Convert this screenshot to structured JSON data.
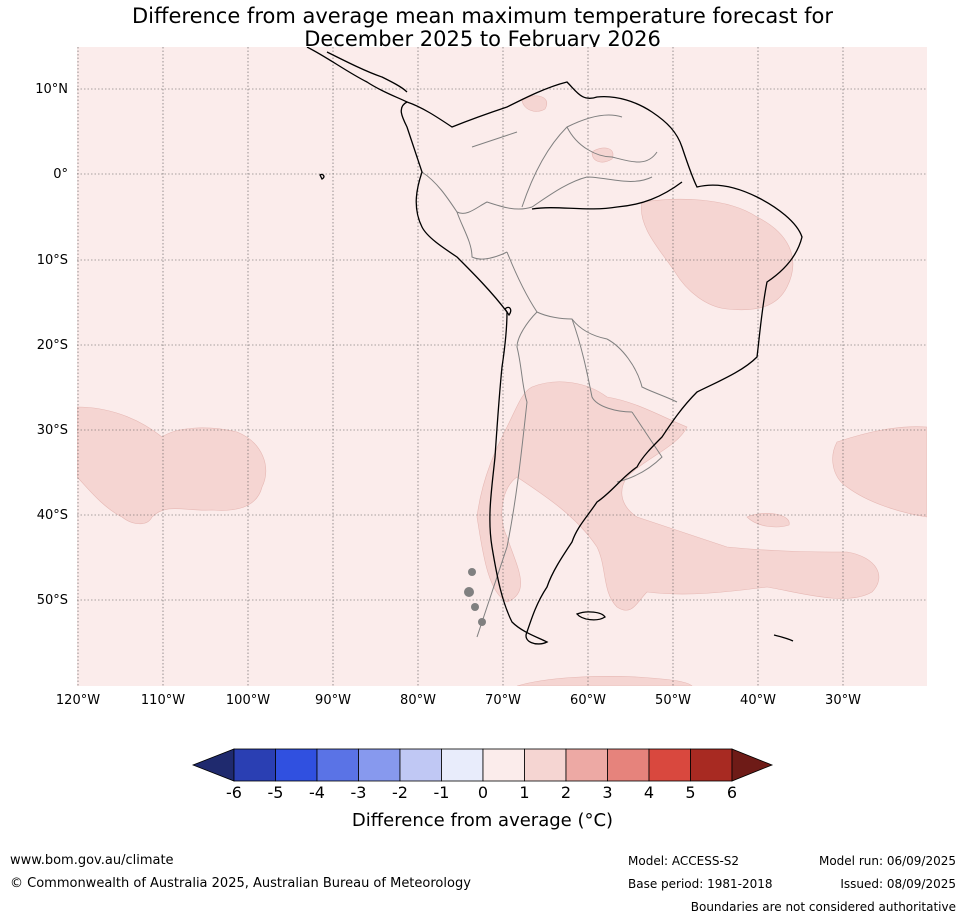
{
  "title_line1": "Difference from average mean maximum temperature forecast for",
  "title_line2": "December 2025 to February 2026",
  "lat_labels": [
    "10°N",
    "0°",
    "10°S",
    "20°S",
    "30°S",
    "40°S",
    "50°S"
  ],
  "lon_labels": [
    "120°W",
    "110°W",
    "100°W",
    "90°W",
    "80°W",
    "70°W",
    "60°W",
    "50°W",
    "40°W",
    "30°W"
  ],
  "colorbar": {
    "ticks": [
      "-6",
      "-5",
      "-4",
      "-3",
      "-2",
      "-1",
      "0",
      "1",
      "2",
      "3",
      "4",
      "5",
      "6"
    ],
    "colors": [
      "#1f2a6e",
      "#2a3fb3",
      "#3050e0",
      "#5a73e6",
      "#8799ee",
      "#c0c8f4",
      "#e8ecfb",
      "#fbeceb",
      "#f5d5d2",
      "#eda9a4",
      "#e6837c",
      "#d9483e",
      "#a82a22",
      "#6e1b17"
    ],
    "label": "Difference from average (°C)"
  },
  "footer": {
    "website": "www.bom.gov.au/climate",
    "copyright": "© Commonwealth of Australia 2025, Australian Bureau of Meteorology",
    "model": "Model: ACCESS-S2",
    "base_period": "Base period: 1981-2018",
    "model_run": "Model run: 06/09/2025",
    "issued": "Issued: 08/09/2025",
    "disclaimer": "Boundaries are not considered authoritative"
  }
}
